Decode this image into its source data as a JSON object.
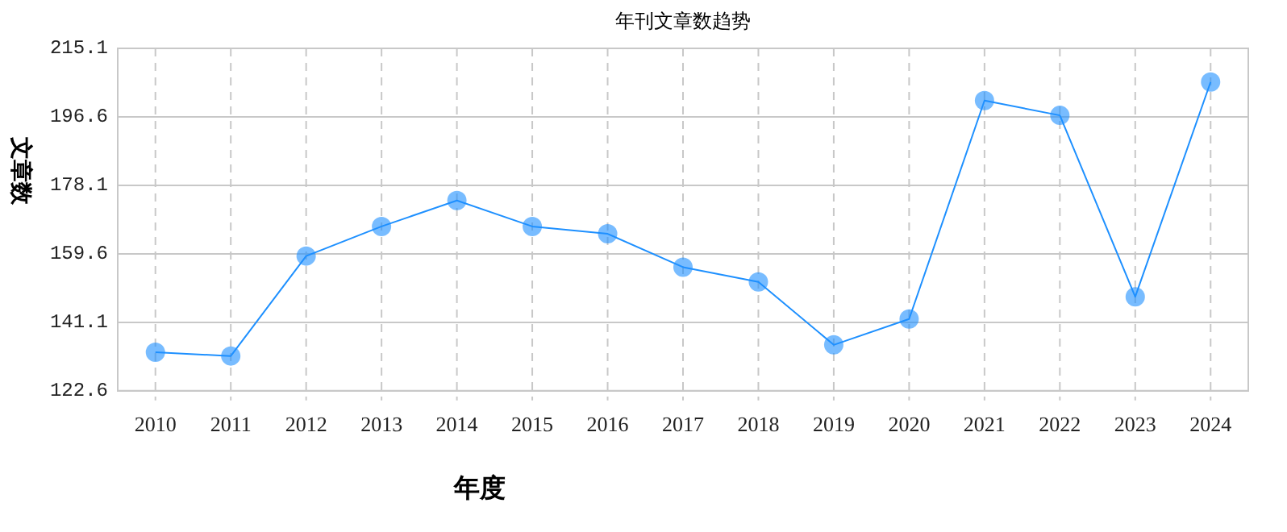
{
  "chart_data": {
    "type": "line",
    "title": "年刊文章数趋势",
    "xlabel": "年度",
    "ylabel": "文章数",
    "categories": [
      "2010",
      "2011",
      "2012",
      "2013",
      "2014",
      "2015",
      "2016",
      "2017",
      "2018",
      "2019",
      "2020",
      "2021",
      "2022",
      "2023",
      "2024"
    ],
    "series": [
      {
        "color": "#1e90ff",
        "values": [
          133,
          132,
          159,
          167,
          174,
          167,
          165,
          156,
          152,
          135,
          142,
          201,
          197,
          148,
          206
        ]
      }
    ],
    "ylim": [
      122.6,
      215.1
    ],
    "yticks": [
      122.6,
      141.1,
      159.6,
      178.1,
      196.6,
      215.1
    ],
    "grid": true,
    "legend": false,
    "marker": "circle",
    "line_style": "solid"
  }
}
